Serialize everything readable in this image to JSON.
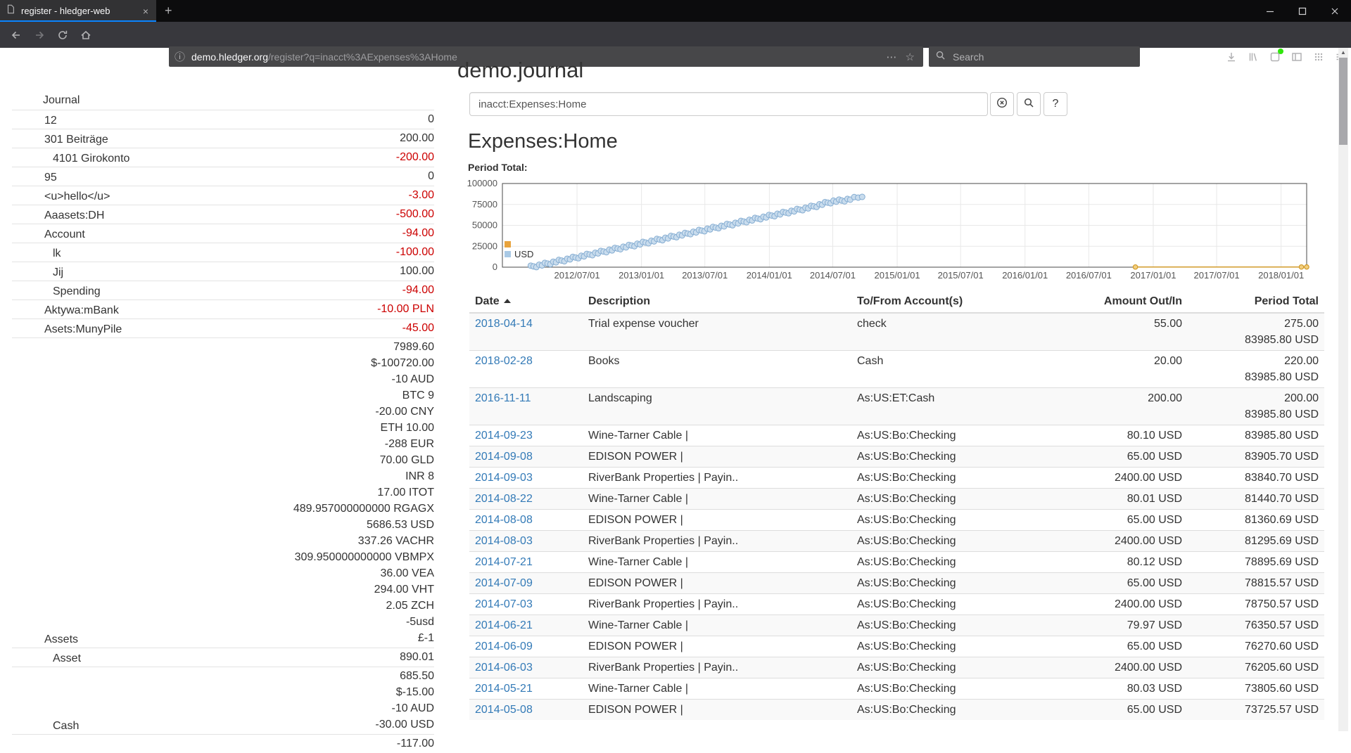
{
  "browser": {
    "tab": {
      "title": "register - hledger-web",
      "close_icon": "×"
    },
    "new_tab_icon": "+",
    "nav_buttons": [
      "back",
      "forward",
      "reload",
      "home"
    ],
    "url": {
      "info_icon": "ⓘ",
      "domain": "demo.hledger.org",
      "path": "/register?q=inacct%3AExpenses%3AHome",
      "page_actions_icon": "⋯",
      "bookmark_star_icon": "☆"
    },
    "search": {
      "placeholder": "Search"
    },
    "toolbar_icons": [
      "downloads",
      "library",
      "extension",
      "sidebar",
      "grid",
      "menu"
    ],
    "window_controls": [
      "minimize",
      "maximize",
      "close"
    ]
  },
  "page": {
    "title": "demo.journal",
    "query_value": "inacct:Expenses:Home",
    "clear_button_icon": "circled-x",
    "search_button_icon": "magnifier",
    "help_button_label": "?",
    "heading": "Expenses:Home",
    "period_total_label": "Period Total:"
  },
  "sidebar": {
    "title": "Journal",
    "accounts": [
      {
        "name": "12",
        "depth": 1,
        "negative": false,
        "amounts": [
          "0"
        ]
      },
      {
        "name": "301 Beiträge",
        "depth": 1,
        "negative": false,
        "amounts": [
          "200.00"
        ]
      },
      {
        "name": "4101 Girokonto",
        "depth": 2,
        "negative": true,
        "amounts": [
          "-200.00"
        ]
      },
      {
        "name": "95",
        "depth": 1,
        "negative": false,
        "amounts": [
          "0"
        ]
      },
      {
        "name": "<u>hello</u>",
        "depth": 1,
        "negative": true,
        "amounts": [
          "-3.00"
        ]
      },
      {
        "name": "Aaasets:DH",
        "depth": 1,
        "negative": true,
        "amounts": [
          "-500.00"
        ]
      },
      {
        "name": "Account",
        "depth": 1,
        "negative": true,
        "amounts": [
          "-94.00"
        ]
      },
      {
        "name": "lk",
        "depth": 2,
        "negative": true,
        "amounts": [
          "-100.00"
        ]
      },
      {
        "name": "Jij",
        "depth": 2,
        "negative": false,
        "amounts": [
          "100.00"
        ]
      },
      {
        "name": "Spending",
        "depth": 2,
        "negative": true,
        "amounts": [
          "-94.00"
        ]
      },
      {
        "name": "Aktywa:mBank",
        "depth": 1,
        "negative": true,
        "amounts": [
          "-10.00 PLN"
        ]
      },
      {
        "name": "Asets:MunyPile",
        "depth": 1,
        "negative": true,
        "amounts": [
          "-45.00"
        ]
      },
      {
        "name": "Assets",
        "depth": 1,
        "negative": false,
        "amounts": [
          "7989.60",
          "$-100720.00",
          "-10 AUD",
          "BTC 9",
          "-20.00 CNY",
          "ETH 10.00",
          "-288 EUR",
          "70.00 GLD",
          "INR 8",
          "17.00 ITOT",
          "489.957000000000 RGAGX",
          "5686.53 USD",
          "337.26 VACHR",
          "309.950000000000 VBMPX",
          "36.00 VEA",
          "294.00 VHT",
          "2.05 ZCH",
          "-5usd",
          "£-1"
        ]
      },
      {
        "name": "Asset",
        "depth": 2,
        "negative": false,
        "amounts": [
          "890.01"
        ]
      },
      {
        "name": "Cash",
        "depth": 2,
        "negative": false,
        "amounts": [
          "685.50",
          "$-15.00",
          "-10 AUD",
          "-30.00 USD"
        ]
      },
      {
        "name": "",
        "depth": 2,
        "negative": false,
        "amounts": [
          "-117.00"
        ]
      }
    ]
  },
  "chart_data": {
    "type": "scatter",
    "title": "Period Total:",
    "x_domain": [
      "2011-12-01",
      "2018-03-15"
    ],
    "xticks": [
      "2012/07/01",
      "2013/01/01",
      "2013/07/01",
      "2014/01/01",
      "2014/07/01",
      "2015/01/01",
      "2015/07/01",
      "2016/01/01",
      "2016/07/01",
      "2017/01/01",
      "2017/07/01",
      "2018/01/01"
    ],
    "ylim": [
      0,
      100000
    ],
    "yticks": [
      0,
      25000,
      50000,
      75000,
      100000
    ],
    "grid": true,
    "legend_position": "bottom-left-inside",
    "series": [
      {
        "name": "",
        "style": "line",
        "swatch": "#e8a33d",
        "color": "#d29b2a",
        "fill": "#f2cf7f",
        "points": [
          [
            "2016-11-11",
            200
          ],
          [
            "2018-02-28",
            220
          ],
          [
            "2018-04-14",
            275
          ]
        ]
      },
      {
        "name": "USD",
        "style": "scatter",
        "swatch": "#a9c9e5",
        "color": "#85add2",
        "fill": "#c9dced",
        "points": [
          [
            "2012-02-20",
            300
          ],
          [
            "2012-03-15",
            2200
          ],
          [
            "2012-04-08",
            4300
          ],
          [
            "2012-05-02",
            6500
          ],
          [
            "2012-05-26",
            8600
          ],
          [
            "2012-06-19",
            10800
          ],
          [
            "2012-07-13",
            12900
          ],
          [
            "2012-08-06",
            15100
          ],
          [
            "2012-08-30",
            17200
          ],
          [
            "2012-09-23",
            19400
          ],
          [
            "2012-10-17",
            21500
          ],
          [
            "2012-11-10",
            23700
          ],
          [
            "2012-12-04",
            25800
          ],
          [
            "2012-12-28",
            28000
          ],
          [
            "2013-01-21",
            30100
          ],
          [
            "2013-02-14",
            32300
          ],
          [
            "2013-03-10",
            34400
          ],
          [
            "2013-04-03",
            36600
          ],
          [
            "2013-04-27",
            38700
          ],
          [
            "2013-05-21",
            40900
          ],
          [
            "2013-06-14",
            43000
          ],
          [
            "2013-07-08",
            45200
          ],
          [
            "2013-08-01",
            47300
          ],
          [
            "2013-08-25",
            49500
          ],
          [
            "2013-09-18",
            51600
          ],
          [
            "2013-10-12",
            53800
          ],
          [
            "2013-11-05",
            55900
          ],
          [
            "2013-11-29",
            58100
          ],
          [
            "2013-12-23",
            60200
          ],
          [
            "2014-01-16",
            62400
          ],
          [
            "2014-02-09",
            64500
          ],
          [
            "2014-03-05",
            66700
          ],
          [
            "2014-03-29",
            68800
          ],
          [
            "2014-04-22",
            71000
          ],
          [
            "2014-05-16",
            73500
          ],
          [
            "2014-06-09",
            76270
          ],
          [
            "2014-07-03",
            78750
          ],
          [
            "2014-07-27",
            79600
          ],
          [
            "2014-08-20",
            81440
          ],
          [
            "2014-09-23",
            83986
          ]
        ]
      }
    ]
  },
  "register": {
    "columns": [
      "Date",
      "Description",
      "To/From Account(s)",
      "Amount Out/In",
      "Period Total"
    ],
    "sort": {
      "column": "Date",
      "direction": "ascending"
    },
    "rows": [
      {
        "date": "2018-04-14",
        "description": "Trial expense voucher",
        "account": "check",
        "amount": "55.00",
        "totals": [
          "275.00",
          "83985.80 USD"
        ]
      },
      {
        "date": "2018-02-28",
        "description": "Books",
        "account": "Cash",
        "amount": "20.00",
        "totals": [
          "220.00",
          "83985.80 USD"
        ]
      },
      {
        "date": "2016-11-11",
        "description": "Landscaping",
        "account": "As:US:ET:Cash",
        "amount": "200.00",
        "totals": [
          "200.00",
          "83985.80 USD"
        ]
      },
      {
        "date": "2014-09-23",
        "description": "Wine-Tarner Cable |",
        "account": "As:US:Bo:Checking",
        "amount": "80.10 USD",
        "totals": [
          "83985.80 USD"
        ]
      },
      {
        "date": "2014-09-08",
        "description": "EDISON POWER |",
        "account": "As:US:Bo:Checking",
        "amount": "65.00 USD",
        "totals": [
          "83905.70 USD"
        ]
      },
      {
        "date": "2014-09-03",
        "description": "RiverBank Properties | Payin..",
        "account": "As:US:Bo:Checking",
        "amount": "2400.00 USD",
        "totals": [
          "83840.70 USD"
        ]
      },
      {
        "date": "2014-08-22",
        "description": "Wine-Tarner Cable |",
        "account": "As:US:Bo:Checking",
        "amount": "80.01 USD",
        "totals": [
          "81440.70 USD"
        ]
      },
      {
        "date": "2014-08-08",
        "description": "EDISON POWER |",
        "account": "As:US:Bo:Checking",
        "amount": "65.00 USD",
        "totals": [
          "81360.69 USD"
        ]
      },
      {
        "date": "2014-08-03",
        "description": "RiverBank Properties | Payin..",
        "account": "As:US:Bo:Checking",
        "amount": "2400.00 USD",
        "totals": [
          "81295.69 USD"
        ]
      },
      {
        "date": "2014-07-21",
        "description": "Wine-Tarner Cable |",
        "account": "As:US:Bo:Checking",
        "amount": "80.12 USD",
        "totals": [
          "78895.69 USD"
        ]
      },
      {
        "date": "2014-07-09",
        "description": "EDISON POWER |",
        "account": "As:US:Bo:Checking",
        "amount": "65.00 USD",
        "totals": [
          "78815.57 USD"
        ]
      },
      {
        "date": "2014-07-03",
        "description": "RiverBank Properties | Payin..",
        "account": "As:US:Bo:Checking",
        "amount": "2400.00 USD",
        "totals": [
          "78750.57 USD"
        ]
      },
      {
        "date": "2014-06-21",
        "description": "Wine-Tarner Cable |",
        "account": "As:US:Bo:Checking",
        "amount": "79.97 USD",
        "totals": [
          "76350.57 USD"
        ]
      },
      {
        "date": "2014-06-09",
        "description": "EDISON POWER |",
        "account": "As:US:Bo:Checking",
        "amount": "65.00 USD",
        "totals": [
          "76270.60 USD"
        ]
      },
      {
        "date": "2014-06-03",
        "description": "RiverBank Properties | Payin..",
        "account": "As:US:Bo:Checking",
        "amount": "2400.00 USD",
        "totals": [
          "76205.60 USD"
        ]
      },
      {
        "date": "2014-05-21",
        "description": "Wine-Tarner Cable |",
        "account": "As:US:Bo:Checking",
        "amount": "80.03 USD",
        "totals": [
          "73805.60 USD"
        ]
      },
      {
        "date": "2014-05-08",
        "description": "EDISON POWER |",
        "account": "As:US:Bo:Checking",
        "amount": "65.00 USD",
        "totals": [
          "73725.57 USD"
        ]
      }
    ]
  },
  "colors": {
    "accent_blue": "#0a84ff",
    "link_blue": "#337ab7",
    "negative_red": "#cc0000",
    "series_usd": "#a9c9e5",
    "series_no_symbol": "#e8a33d",
    "extension_badge": "#30e60b"
  }
}
